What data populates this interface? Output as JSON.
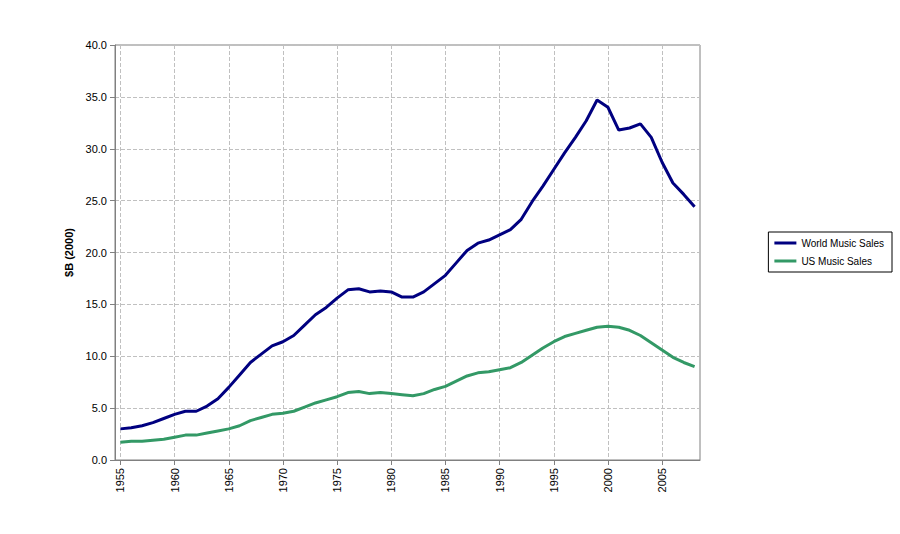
{
  "chart_data": {
    "type": "line",
    "y_label": "$B (2000)",
    "x": [
      1955,
      1956,
      1957,
      1958,
      1959,
      1960,
      1961,
      1962,
      1963,
      1964,
      1965,
      1966,
      1967,
      1968,
      1969,
      1970,
      1971,
      1972,
      1973,
      1974,
      1975,
      1976,
      1977,
      1978,
      1979,
      1980,
      1981,
      1982,
      1983,
      1984,
      1985,
      1986,
      1987,
      1988,
      1989,
      1990,
      1991,
      1992,
      1993,
      1994,
      1995,
      1996,
      1997,
      1998,
      1999,
      2000,
      2001,
      2002,
      2003,
      2004,
      2005,
      2006,
      2007,
      2008
    ],
    "series": [
      {
        "name": "World Music Sales",
        "color": "#000080",
        "values": [
          3.0,
          3.1,
          3.3,
          3.6,
          4.0,
          4.4,
          4.7,
          4.7,
          5.2,
          5.9,
          7.0,
          8.2,
          9.4,
          10.2,
          11.0,
          11.4,
          12.0,
          13.0,
          14.0,
          14.7,
          15.6,
          16.4,
          16.5,
          16.2,
          16.3,
          16.2,
          15.7,
          15.7,
          16.2,
          17.0,
          17.8,
          19.0,
          20.2,
          20.9,
          21.2,
          21.7,
          22.2,
          23.2,
          24.9,
          26.4,
          28.0,
          29.6,
          31.1,
          32.7,
          34.7,
          34.0,
          31.8,
          32.0,
          32.4,
          31.1,
          28.7,
          26.7,
          25.6,
          24.4
        ]
      },
      {
        "name": "US Music Sales",
        "color": "#339966",
        "values": [
          1.7,
          1.8,
          1.8,
          1.9,
          2.0,
          2.2,
          2.4,
          2.4,
          2.6,
          2.8,
          3.0,
          3.3,
          3.8,
          4.1,
          4.4,
          4.5,
          4.7,
          5.1,
          5.5,
          5.8,
          6.1,
          6.5,
          6.6,
          6.4,
          6.5,
          6.4,
          6.3,
          6.2,
          6.4,
          6.8,
          7.1,
          7.6,
          8.1,
          8.4,
          8.5,
          8.7,
          8.9,
          9.4,
          10.1,
          10.8,
          11.4,
          11.9,
          12.2,
          12.5,
          12.8,
          12.9,
          12.8,
          12.5,
          12.0,
          11.3,
          10.6,
          9.9,
          9.4,
          9.0
        ]
      }
    ],
    "xlim": [
      1954.5,
      2008.5
    ],
    "xticks": [
      1955,
      1960,
      1965,
      1970,
      1975,
      1980,
      1985,
      1990,
      1995,
      2000,
      2005
    ],
    "ylim": [
      0,
      40
    ],
    "yticks": [
      {
        "value": 0,
        "label": "0.0"
      },
      {
        "value": 5,
        "label": "5.0"
      },
      {
        "value": 10,
        "label": "10.0"
      },
      {
        "value": 15,
        "label": "15.0"
      },
      {
        "value": 20,
        "label": "20.0"
      },
      {
        "value": 25,
        "label": "25.0"
      },
      {
        "value": 30,
        "label": "30.0"
      },
      {
        "value": 35,
        "label": "35.0"
      },
      {
        "value": 40,
        "label": "40.0"
      }
    ],
    "grid": true,
    "legend": "right"
  }
}
